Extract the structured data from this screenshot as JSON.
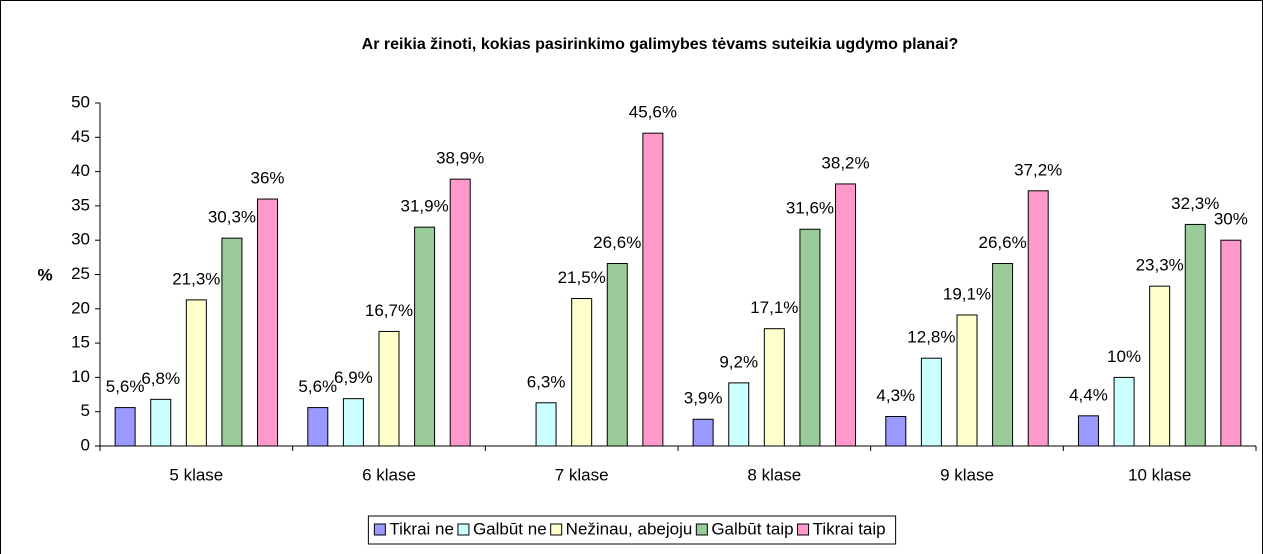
{
  "chart_data": {
    "type": "bar",
    "title": "Ar reikia žinoti, kokias pasirinkimo galimybes tėvams suteikia ugdymo planai?",
    "y_label": "%",
    "categories": [
      "5 klase",
      "6 klase",
      "7 klase",
      "8 klase",
      "9 klase",
      "10 klase"
    ],
    "series": [
      {
        "name": "Tikrai ne",
        "color": "#9999ff",
        "values": [
          5.6,
          5.6,
          null,
          3.9,
          4.3,
          4.4
        ],
        "value_labels": [
          "5,6%",
          "5,6%",
          null,
          "3,9%",
          "4,3%",
          "4,4%"
        ]
      },
      {
        "name": "Galbūt ne",
        "color": "#ccffff",
        "values": [
          6.8,
          6.9,
          6.3,
          9.2,
          12.8,
          10
        ],
        "value_labels": [
          "6,8%",
          "6,9%",
          "6,3%",
          "9,2%",
          "12,8%",
          "10%"
        ]
      },
      {
        "name": "Nežinau, abejoju",
        "color": "#ffffcc",
        "values": [
          21.3,
          16.7,
          21.5,
          17.1,
          19.1,
          23.3
        ],
        "value_labels": [
          "21,3%",
          "16,7%",
          "21,5%",
          "17,1%",
          "19,1%",
          "23,3%"
        ]
      },
      {
        "name": "Galbūt taip",
        "color": "#99cc99",
        "values": [
          30.3,
          31.9,
          26.6,
          31.6,
          26.6,
          32.3
        ],
        "value_labels": [
          "30,3%",
          "31,9%",
          "26,6%",
          "31,6%",
          "26,6%",
          "32,3%"
        ]
      },
      {
        "name": "Tikrai taip",
        "color": "#ff99cc",
        "values": [
          36,
          38.9,
          45.6,
          38.2,
          37.2,
          30
        ],
        "value_labels": [
          "36%",
          "38,9%",
          "45,6%",
          "38,2%",
          "37,2%",
          "30%"
        ]
      }
    ],
    "ylim": [
      0,
      50
    ],
    "yticks": [
      0,
      5,
      10,
      15,
      20,
      25,
      30,
      35,
      40,
      45,
      50
    ],
    "grid": false,
    "legend": "bottom"
  }
}
